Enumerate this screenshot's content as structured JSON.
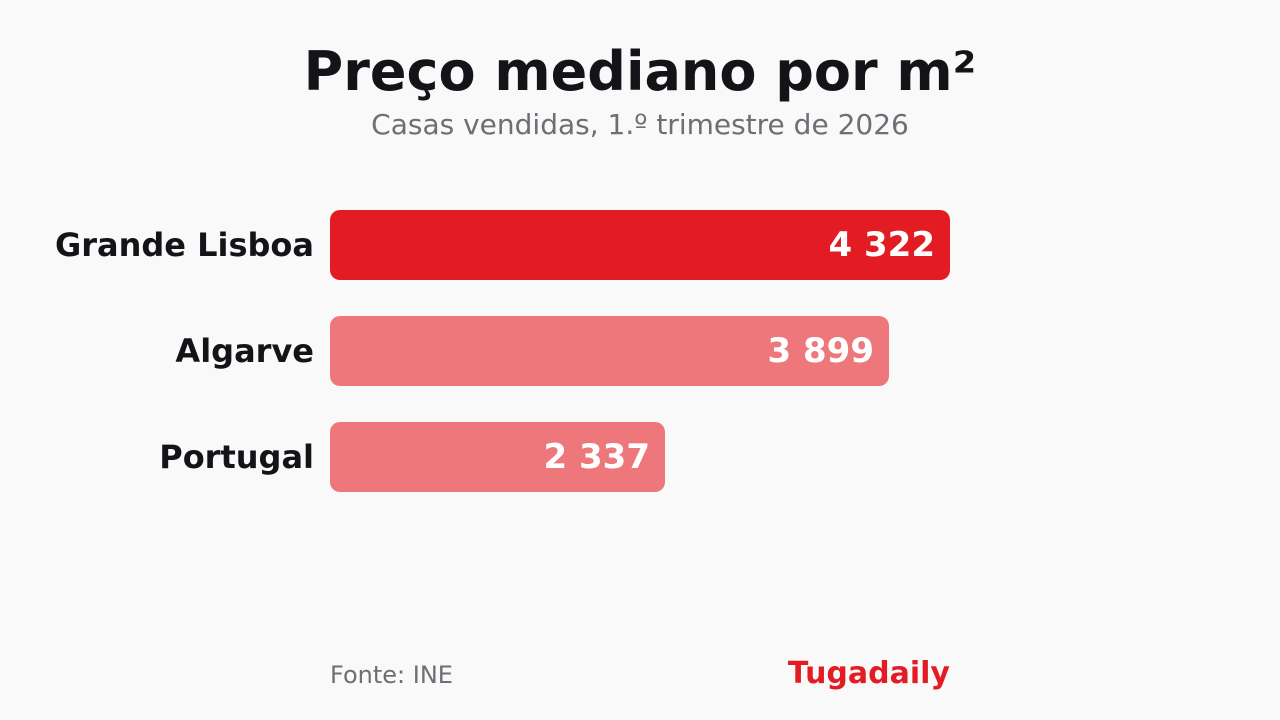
{
  "title": "Preço mediano por m²",
  "subtitle": "Casas vendidas, 1.º trimestre de 2026",
  "source": "Fonte: INE",
  "brand": "Tugadaily",
  "colors": {
    "background": "#f9f9f9",
    "highlight": "#e31c24",
    "secondary": "#ee777b",
    "text": "#141418",
    "muted": "#6e6e74"
  },
  "chart_data": {
    "type": "bar",
    "orientation": "horizontal",
    "title": "Preço mediano por m²",
    "subtitle": "Casas vendidas, 1.º trimestre de 2026",
    "categories": [
      "Grande Lisboa",
      "Algarve",
      "Portugal"
    ],
    "values": [
      4322,
      3899,
      2337
    ],
    "value_labels": [
      "4 322",
      "3 899",
      "2 337"
    ],
    "highlighted": [
      true,
      false,
      false
    ],
    "xlim": [
      0,
      4322
    ],
    "grid": false,
    "legend": "none"
  }
}
